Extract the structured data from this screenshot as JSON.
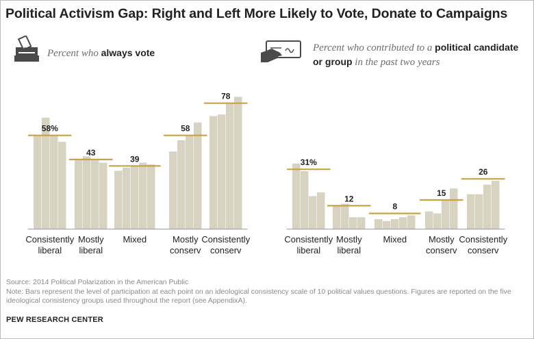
{
  "title": "Political Activism Gap: Right and Left More Likely to Vote, Donate to Campaigns",
  "legend": {
    "vote": {
      "icon": "ballot-box-icon",
      "prefix": "Percent who ",
      "bold": "always vote",
      "suffix": ""
    },
    "donate": {
      "icon": "check-payment-icon",
      "prefix": "Percent who contributed to a ",
      "bold": "political candidate or group",
      "suffix": " in the past two years"
    }
  },
  "colors": {
    "bar": "#d8d3c1",
    "avg_line": "#c9a243",
    "axis": "#9a9a9a",
    "label": "#222222"
  },
  "chart_data": [
    {
      "type": "bar",
      "title": "Percent who always vote",
      "ylim": [
        0,
        100
      ],
      "groups": [
        {
          "label": [
            "Consistently",
            "liberal"
          ],
          "average_label": "58%",
          "average": 58,
          "values": [
            58,
            69,
            58,
            54
          ]
        },
        {
          "label": [
            "Mostly",
            "liberal"
          ],
          "average_label": "43",
          "average": 43,
          "values": [
            43,
            45,
            43,
            41
          ]
        },
        {
          "label": [
            "Mixed"
          ],
          "average_label": "39",
          "average": 39,
          "values": [
            36,
            38,
            39,
            41,
            40
          ]
        },
        {
          "label": [
            "Mostly",
            "conserv"
          ],
          "average_label": "58",
          "average": 58,
          "values": [
            48,
            55,
            58,
            66
          ]
        },
        {
          "label": [
            "Consistently",
            "conserv"
          ],
          "average_label": "78",
          "average": 78,
          "values": [
            70,
            71,
            78,
            82
          ]
        }
      ]
    },
    {
      "type": "bar",
      "title": "Percent who contributed to a political candidate or group in the past two years",
      "ylim": [
        0,
        100
      ],
      "groups": [
        {
          "label": [
            "Consistently",
            "liberal"
          ],
          "average_label": "31%",
          "average": 31,
          "values": [
            34,
            30,
            17,
            19
          ]
        },
        {
          "label": [
            "Mostly",
            "liberal"
          ],
          "average_label": "12",
          "average": 12,
          "values": [
            12,
            13,
            6,
            6
          ]
        },
        {
          "label": [
            "Mixed"
          ],
          "average_label": "8",
          "average": 8,
          "values": [
            5,
            4,
            5,
            6,
            7
          ]
        },
        {
          "label": [
            "Mostly",
            "conserv"
          ],
          "average_label": "15",
          "average": 15,
          "values": [
            9,
            8,
            15,
            21
          ]
        },
        {
          "label": [
            "Consistently",
            "conserv"
          ],
          "average_label": "26",
          "average": 26,
          "values": [
            18,
            18,
            23,
            25
          ]
        }
      ]
    }
  ],
  "footer": {
    "source": "Source: 2014 Political Polarization in the American Public",
    "note": "Note: Bars represent the level of participation at each point on an ideological consistency scale of 10 political values questions. Figures are reported on the five ideological consistency groups used throughout the report (see AppendixA)."
  },
  "brand": "PEW RESEARCH CENTER"
}
